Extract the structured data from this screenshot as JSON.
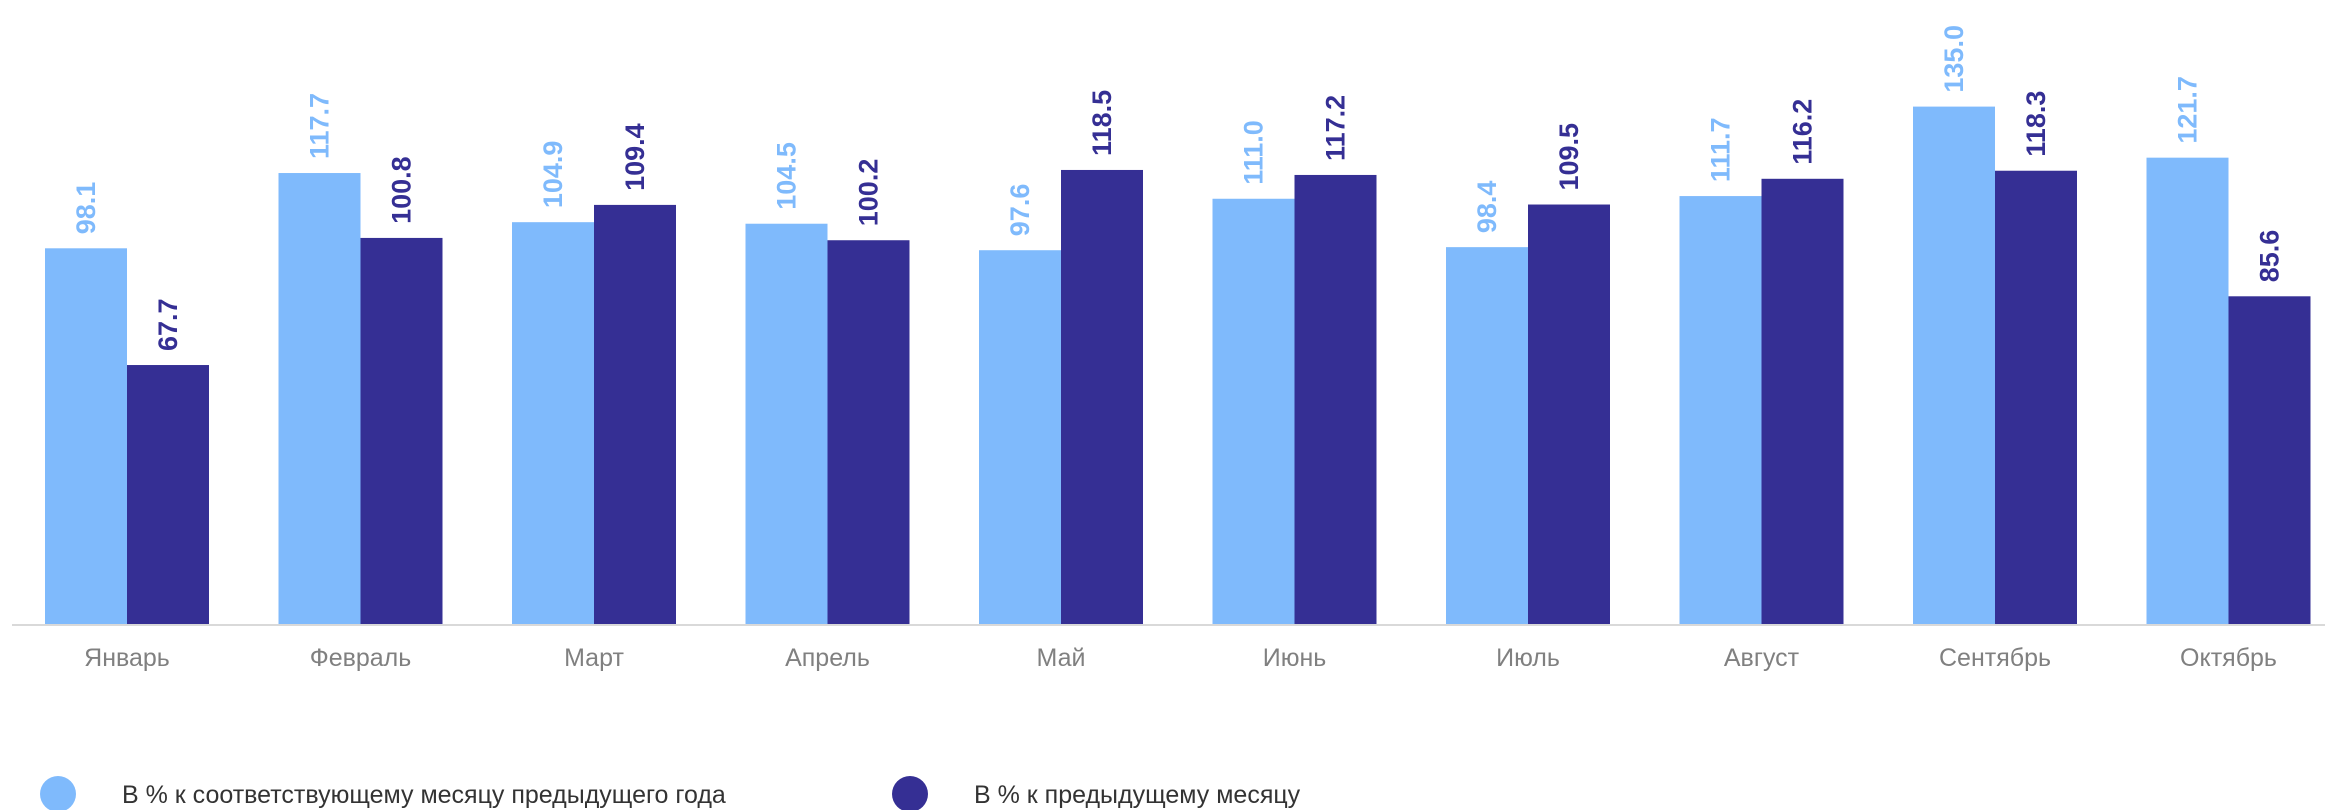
{
  "chart_data": {
    "type": "bar",
    "categories": [
      "Январь",
      "Февраль",
      "Март",
      "Апрель",
      "Май",
      "Июнь",
      "Июль",
      "Август",
      "Сентябрь",
      "Октябрь"
    ],
    "series": [
      {
        "name": "В % к соответствующему месяцу предыдущего года",
        "color": "#7fbafc",
        "values": [
          98.1,
          117.7,
          104.9,
          104.5,
          97.6,
          111.0,
          98.4,
          111.7,
          135.0,
          121.7
        ],
        "labels": [
          "98.1",
          "117.7",
          "104.9",
          "104.5",
          "97.6",
          "111.0",
          "98.4",
          "111.7",
          "135.0",
          "121.7"
        ]
      },
      {
        "name": "В % к предыдущему месяцу",
        "color": "#352f94",
        "values": [
          67.7,
          100.8,
          109.4,
          100.2,
          118.5,
          117.2,
          109.5,
          116.2,
          118.3,
          85.6
        ],
        "labels": [
          "67.7",
          "100.8",
          "109.4",
          "100.2",
          "118.5",
          "117.2",
          "109.5",
          "116.2",
          "118.3",
          "85.6"
        ]
      }
    ],
    "ylim": [
      0,
      150
    ],
    "grid": false,
    "legend": "bottom-left",
    "axis_color": "#d9d9d9"
  }
}
